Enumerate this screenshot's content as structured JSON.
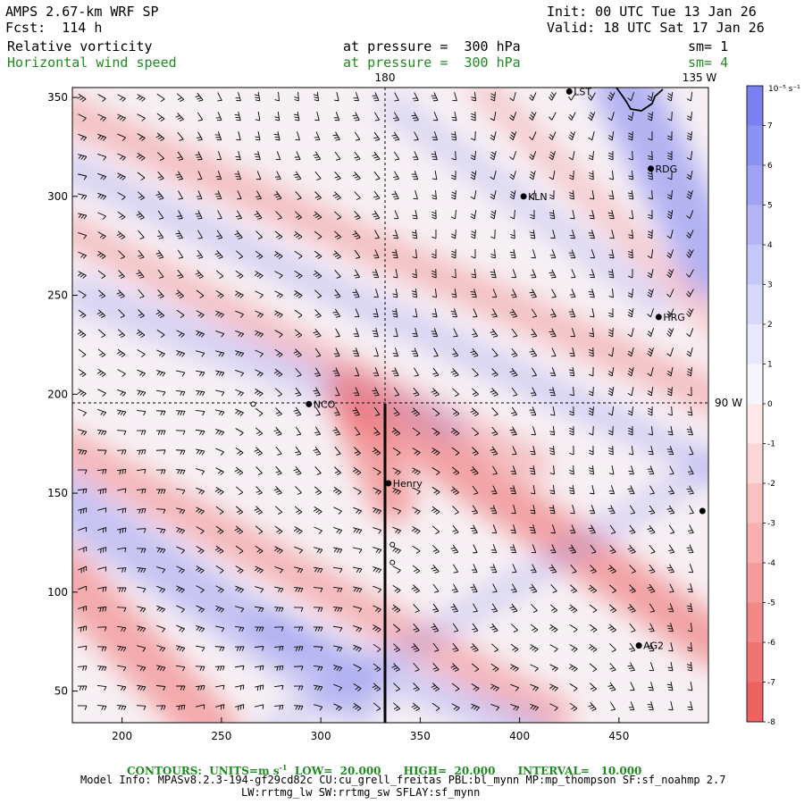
{
  "header": {
    "title": "AMPS 2.67-km WRF SP",
    "forecast": "Fcst:  114 h",
    "init": "Init: 00 UTC Tue 13 Jan 26",
    "valid": "Valid: 18 UTC Sat 17 Jan 26",
    "field1_name": "Relative vorticity",
    "field1_level": "at pressure =  300 hPa",
    "field1_sm": "sm= 1",
    "field2_name": "Horizontal wind speed",
    "field2_level": "at pressure =  300 hPa",
    "field2_sm": "sm= 4"
  },
  "map": {
    "meridian_top_label": "180",
    "meridian_right_top_label": "135 W",
    "parallel_right_label": "90 W",
    "x_ticks": [
      "200",
      "250",
      "300",
      "350",
      "400",
      "450"
    ],
    "y_ticks": [
      "50",
      "100",
      "150",
      "200",
      "250",
      "300",
      "350"
    ],
    "stations": [
      {
        "label": "LST",
        "x": 425,
        "y": 353
      },
      {
        "label": "RDG",
        "x": 466,
        "y": 314
      },
      {
        "label": "KLN",
        "x": 402,
        "y": 300
      },
      {
        "label": "HRG",
        "x": 470,
        "y": 239
      },
      {
        "label": "NCO",
        "x": 294,
        "y": 195
      },
      {
        "label": "Henry",
        "x": 334,
        "y": 155
      },
      {
        "label": "AG2",
        "x": 460,
        "y": 73
      },
      {
        "label": "",
        "x": 492,
        "y": 141
      }
    ],
    "open_markers": [
      {
        "x": 266,
        "y": 195
      },
      {
        "x": 336,
        "y": 124
      },
      {
        "x": 336,
        "y": 115
      }
    ]
  },
  "colorbar": {
    "unit": "10⁻⁵ s⁻¹",
    "labels": [
      "7",
      "6",
      "5",
      "4",
      "3",
      "2",
      "1",
      "0",
      "-1",
      "-2",
      "-3",
      "-4",
      "-5",
      "-6",
      "-7",
      "-8"
    ],
    "colors": [
      "#7b7ff0",
      "#8d91f2",
      "#a0a3f4",
      "#b3b5f6",
      "#c5c7f8",
      "#d7d8fa",
      "#e8e9fc",
      "#f6f6fe",
      "#fde9e9",
      "#fbd6d6",
      "#f9c2c2",
      "#f7afaf",
      "#f59b9b",
      "#f38888",
      "#f17474",
      "#ef6262"
    ]
  },
  "footer": {
    "contours_label": "CONTOURS:",
    "units_label": "UNITS=m s",
    "units_exp": "-1",
    "low": "LOW=  20.000",
    "high": "HIGH=  20.000",
    "interval": "INTERVAL=   10.000",
    "model_info": "Model Info: MPASv8.2.3-194-gf29cd82c CU:cu_grell_freitas PBL:bl_mynn MP:mp_thompson SF:sf_noahmp 2.7",
    "model_info2": "LW:rrtmg_lw SW:rrtmg_sw SFLAY:sf_mynn"
  },
  "colors": {
    "positive": "#ef6262",
    "negative": "#7b7ff0",
    "barb": "#000000",
    "footer_green": "#1f8a1f"
  }
}
